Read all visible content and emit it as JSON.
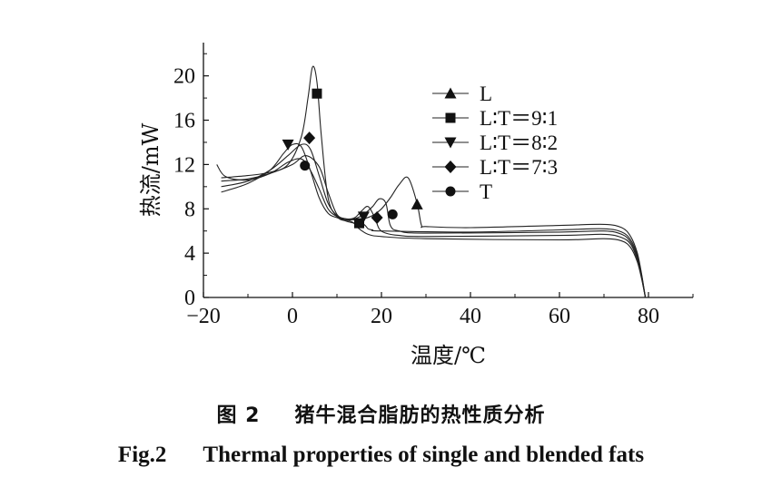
{
  "chart_data": {
    "type": "line",
    "xlabel": "温度/℃",
    "ylabel": "热流/mW",
    "xlim": [
      -20,
      90
    ],
    "ylim": [
      0,
      23
    ],
    "x_ticks": [
      -20,
      0,
      20,
      40,
      60,
      80
    ],
    "x_tick_labels": [
      "−20",
      "0",
      "20",
      "40",
      "60",
      "80"
    ],
    "y_ticks": [
      0,
      4,
      8,
      12,
      16,
      20
    ],
    "y_tick_labels": [
      "0",
      "4",
      "8",
      "12",
      "16",
      "20"
    ],
    "grid": false,
    "legend_position": "top-right",
    "series": [
      {
        "name": "L",
        "marker": "triangle-up",
        "x": [
          -16,
          -10,
          -5,
          0,
          3,
          6,
          8,
          10,
          12,
          14,
          16,
          18,
          20,
          22,
          24,
          26,
          28,
          29,
          30,
          40,
          60,
          70,
          74,
          76,
          77.5,
          78.5,
          79.3
        ],
        "y": [
          10.5,
          10.7,
          11.2,
          12.0,
          12.8,
          11.8,
          9.5,
          7.5,
          7.1,
          7.0,
          7.1,
          7.4,
          8.0,
          9.0,
          10.2,
          10.8,
          8.5,
          6.5,
          6.4,
          6.3,
          6.5,
          6.6,
          6.3,
          5.5,
          4.0,
          2.0,
          0.0
        ],
        "markers": [
          {
            "x": 28,
            "y": 8.4
          }
        ]
      },
      {
        "name": "L∶T＝9∶1",
        "marker": "square",
        "x": [
          -16,
          -10,
          -5,
          -1,
          2,
          3.5,
          4.5,
          5.5,
          6.5,
          8,
          10,
          12,
          14,
          16,
          17,
          18,
          20,
          40,
          60,
          70,
          74,
          76,
          77.5,
          78.5,
          79.3
        ],
        "y": [
          10.8,
          11.0,
          11.3,
          12.0,
          14.5,
          18.0,
          20.8,
          19.5,
          14.5,
          9.0,
          7.3,
          6.9,
          6.7,
          6.6,
          6.2,
          6.1,
          6.0,
          5.9,
          6.1,
          6.2,
          5.9,
          5.2,
          3.8,
          1.9,
          0.0
        ],
        "markers": [
          {
            "x": 5.5,
            "y": 18.4
          },
          {
            "x": 15,
            "y": 6.7
          }
        ]
      },
      {
        "name": "L∶T＝8∶2",
        "marker": "triangle-down",
        "x": [
          -16,
          -10,
          -5,
          -2,
          0,
          2,
          4,
          6,
          8,
          10,
          12,
          14,
          16,
          18,
          19.5,
          21,
          22,
          24,
          30,
          60,
          70,
          74,
          76,
          77.5,
          78.5,
          79.3
        ],
        "y": [
          9.5,
          10.3,
          11.5,
          13.0,
          13.8,
          13.6,
          11.5,
          9.0,
          7.6,
          7.2,
          7.0,
          7.1,
          7.5,
          8.2,
          8.9,
          8.5,
          6.5,
          6.0,
          5.8,
          5.9,
          6.0,
          5.7,
          5.0,
          3.6,
          1.8,
          0.0
        ],
        "markers": [
          {
            "x": -1,
            "y": 13.8
          },
          {
            "x": 16,
            "y": 7.3
          }
        ]
      },
      {
        "name": "L∶T＝7∶3",
        "marker": "diamond",
        "x": [
          -16,
          -10,
          -5,
          -1,
          2,
          4,
          6,
          8,
          10,
          12,
          14,
          15.5,
          17,
          18.5,
          19.5,
          21,
          24,
          30,
          60,
          70,
          74,
          76,
          77.5,
          78.5,
          79.3
        ],
        "y": [
          10.0,
          10.5,
          11.5,
          12.8,
          13.8,
          13.4,
          11.0,
          8.5,
          7.4,
          7.1,
          7.2,
          7.8,
          8.2,
          7.2,
          6.2,
          5.8,
          5.6,
          5.5,
          5.6,
          5.7,
          5.4,
          4.8,
          3.4,
          1.7,
          0.0
        ],
        "markers": [
          {
            "x": 3.8,
            "y": 14.4
          },
          {
            "x": 19,
            "y": 7.2
          }
        ]
      },
      {
        "name": "T",
        "marker": "circle",
        "x": [
          -17,
          -15,
          -10,
          -5,
          -1,
          2,
          4,
          6,
          8,
          10,
          12,
          13.5,
          15,
          17,
          20,
          30,
          60,
          70,
          74,
          76,
          77.5,
          78.5,
          79.3
        ],
        "y": [
          12.0,
          10.9,
          10.6,
          11.2,
          12.2,
          12.5,
          11.5,
          9.8,
          8.0,
          7.3,
          7.0,
          6.8,
          6.2,
          5.7,
          5.5,
          5.3,
          5.2,
          5.3,
          5.1,
          4.5,
          3.2,
          1.6,
          0.0
        ],
        "markers": [
          {
            "x": 2.8,
            "y": 11.9
          },
          {
            "x": 22.5,
            "y": 7.5
          }
        ]
      }
    ]
  },
  "caption": {
    "cn_number": "图 2",
    "cn_title": "猪牛混合脂肪的热性质分析",
    "en_number": "Fig.2",
    "en_title": "Thermal properties of single and blended fats"
  }
}
